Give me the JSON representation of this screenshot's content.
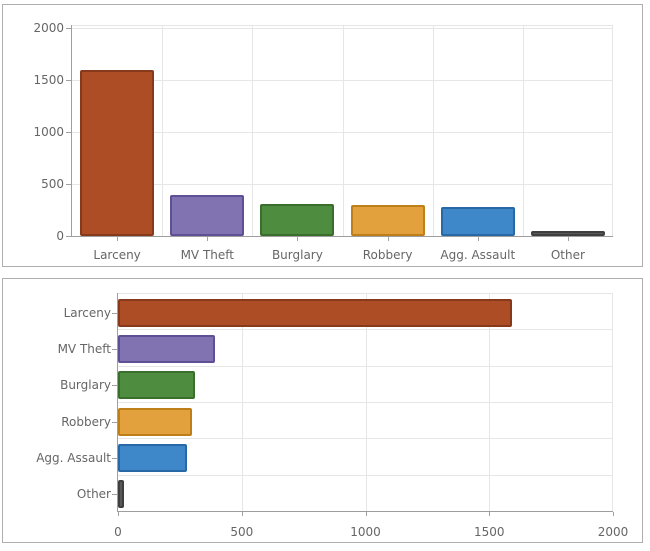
{
  "chart_data": [
    {
      "type": "bar",
      "orientation": "vertical",
      "title": "",
      "xlabel": "",
      "ylabel": "",
      "categories": [
        "Larceny",
        "MV Theft",
        "Burglary",
        "Robbery",
        "Agg. Assault",
        "Other"
      ],
      "values": [
        1590,
        390,
        310,
        300,
        280,
        20
      ],
      "value_axis_ticks": [
        "0",
        "500",
        "1000",
        "1500",
        "2000"
      ],
      "value_axis_tick_values": [
        0,
        500,
        1000,
        1500,
        2000
      ],
      "ylim": [
        0,
        2000
      ],
      "grid": true,
      "legend": false,
      "bar_fills": [
        "#AC4D26",
        "#8173B2",
        "#4E8C40",
        "#E2A13C",
        "#3E87C8",
        "#595959"
      ],
      "bar_strokes": [
        "#87391B",
        "#5F5096",
        "#3A6E2D",
        "#BE7E18",
        "#2968A6",
        "#3F3F3F"
      ]
    },
    {
      "type": "bar",
      "orientation": "horizontal",
      "title": "",
      "xlabel": "",
      "ylabel": "",
      "categories": [
        "Larceny",
        "MV Theft",
        "Burglary",
        "Robbery",
        "Agg. Assault",
        "Other"
      ],
      "values": [
        1590,
        390,
        310,
        300,
        280,
        20
      ],
      "value_axis_ticks": [
        "0",
        "500",
        "1000",
        "1500",
        "2000"
      ],
      "value_axis_tick_values": [
        0,
        500,
        1000,
        1500,
        2000
      ],
      "xlim": [
        0,
        2000
      ],
      "grid": true,
      "legend": false,
      "bar_fills": [
        "#AC4D26",
        "#8173B2",
        "#4E8C40",
        "#E2A13C",
        "#3E87C8",
        "#595959"
      ],
      "bar_strokes": [
        "#87391B",
        "#5F5096",
        "#3A6E2D",
        "#BE7E18",
        "#2968A6",
        "#3F3F3F"
      ]
    }
  ],
  "styles": {
    "background": "#FFFFFF",
    "panel_border": "#AEAEAE",
    "text_color": "#666666",
    "axis_color": "#9E9E9E",
    "tick_color": "#A0A0A0",
    "grid_color": "#E6E6E6"
  }
}
